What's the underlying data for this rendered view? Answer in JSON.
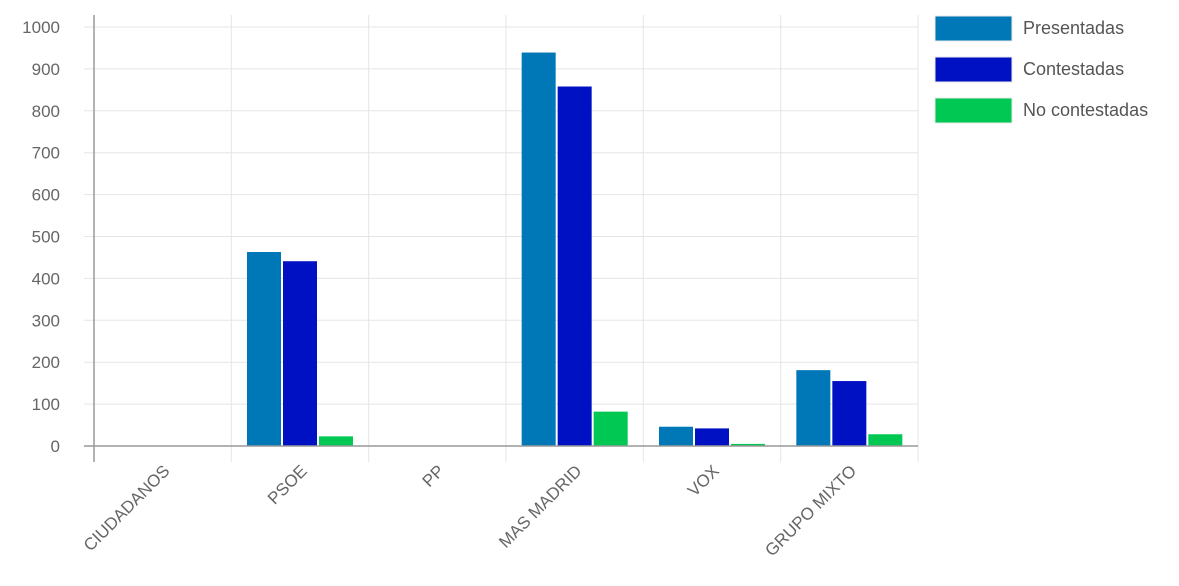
{
  "chart_data": {
    "type": "bar",
    "categories": [
      "CIUDADANOS",
      "PSOE",
      "PP",
      "MAS MADRID",
      "VOX",
      "GRUPO MIXTO"
    ],
    "series": [
      {
        "name": "Presentadas",
        "color": "#0077b6",
        "values": [
          0,
          463,
          0,
          939,
          46,
          181
        ]
      },
      {
        "name": "Contestadas",
        "color": "#0011c4",
        "values": [
          0,
          441,
          0,
          858,
          42,
          155
        ]
      },
      {
        "name": "No contestadas",
        "color": "#00c853",
        "values": [
          0,
          23,
          0,
          82,
          5,
          28
        ]
      }
    ],
    "ylim": [
      0,
      1000
    ],
    "yticks": [
      0,
      100,
      200,
      300,
      400,
      500,
      600,
      700,
      800,
      900,
      1000
    ],
    "grid": true,
    "legend_position": "top-right"
  }
}
